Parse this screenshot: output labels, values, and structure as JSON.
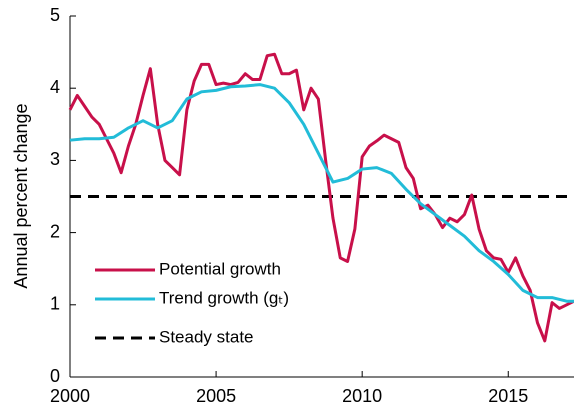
{
  "chart_data": {
    "type": "line",
    "y_label": "Annual percent change",
    "xlim": [
      2000,
      2017.25
    ],
    "xticks": [
      2000,
      2005,
      2010,
      2015
    ],
    "ylim": [
      0,
      5
    ],
    "yticks": [
      0,
      1,
      2,
      3,
      4,
      5
    ],
    "legend": "lower-left",
    "series": [
      {
        "name": "Potential growth",
        "color": "#c8104a",
        "x": [
          2000,
          2000.25,
          2000.5,
          2000.75,
          2001,
          2001.25,
          2001.5,
          2001.75,
          2002,
          2002.25,
          2002.5,
          2002.75,
          2003,
          2003.25,
          2003.5,
          2003.75,
          2004,
          2004.25,
          2004.5,
          2004.75,
          2005,
          2005.25,
          2005.5,
          2005.75,
          2006,
          2006.25,
          2006.5,
          2006.75,
          2007,
          2007.25,
          2007.5,
          2007.75,
          2008,
          2008.25,
          2008.5,
          2008.75,
          2009,
          2009.25,
          2009.5,
          2009.75,
          2010,
          2010.25,
          2010.5,
          2010.75,
          2011,
          2011.25,
          2011.5,
          2011.75,
          2012,
          2012.25,
          2012.5,
          2012.75,
          2013,
          2013.25,
          2013.5,
          2013.75,
          2014,
          2014.25,
          2014.5,
          2014.75,
          2015,
          2015.25,
          2015.5,
          2015.75,
          2016,
          2016.25,
          2016.5,
          2016.75,
          2017,
          2017.25
        ],
        "values": [
          3.7,
          3.9,
          3.75,
          3.6,
          3.5,
          3.3,
          3.1,
          2.83,
          3.2,
          3.5,
          3.9,
          4.27,
          3.5,
          3.0,
          2.9,
          2.8,
          3.7,
          4.1,
          4.33,
          4.33,
          4.05,
          4.07,
          4.05,
          4.08,
          4.2,
          4.12,
          4.12,
          4.45,
          4.47,
          4.2,
          4.2,
          4.25,
          3.7,
          4.0,
          3.85,
          3.0,
          2.2,
          1.65,
          1.6,
          2.05,
          3.05,
          3.2,
          3.27,
          3.35,
          3.3,
          3.25,
          2.9,
          2.75,
          2.33,
          2.38,
          2.25,
          2.07,
          2.2,
          2.15,
          2.25,
          2.52,
          2.05,
          1.75,
          1.65,
          1.63,
          1.45,
          1.65,
          1.4,
          1.2,
          0.75,
          0.5,
          1.03,
          0.95,
          1.0,
          1.05
        ]
      },
      {
        "name": "Trend growth (gₜ)",
        "color": "#22bcd8",
        "x": [
          2000,
          2000.5,
          2001,
          2001.5,
          2002,
          2002.5,
          2003,
          2003.5,
          2004,
          2004.5,
          2005,
          2005.5,
          2006,
          2006.5,
          2007,
          2007.5,
          2008,
          2008.5,
          2009,
          2009.5,
          2010,
          2010.5,
          2011,
          2011.5,
          2012,
          2012.5,
          2013,
          2013.5,
          2014,
          2014.5,
          2015,
          2015.5,
          2016,
          2016.5,
          2017,
          2017.25
        ],
        "values": [
          3.28,
          3.3,
          3.3,
          3.32,
          3.45,
          3.55,
          3.45,
          3.55,
          3.85,
          3.95,
          3.97,
          4.02,
          4.03,
          4.05,
          4.0,
          3.8,
          3.5,
          3.1,
          2.7,
          2.75,
          2.88,
          2.9,
          2.82,
          2.6,
          2.4,
          2.25,
          2.1,
          1.95,
          1.75,
          1.6,
          1.42,
          1.2,
          1.1,
          1.1,
          1.05,
          1.05
        ]
      }
    ],
    "reference_line": {
      "name": "Steady state",
      "value": 2.5,
      "color": "#000000"
    }
  }
}
